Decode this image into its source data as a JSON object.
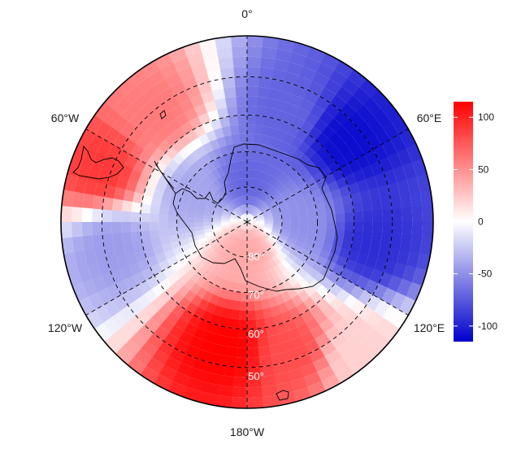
{
  "map": {
    "projection": "south-polar-stereographic",
    "longitude_labels": [
      "0°",
      "60°E",
      "120°E",
      "180°W",
      "120°W",
      "60°W"
    ],
    "latitude_labels": [
      "80°",
      "70°",
      "60°",
      "50°"
    ],
    "latitude_circles": [
      -80,
      -70,
      -60,
      -50
    ],
    "longitude_lines": [
      0,
      60,
      120,
      180,
      -120,
      -60
    ],
    "boundary_latitude": -40,
    "grid_style": "dashed",
    "coastlines": "Antarctica, southern South America",
    "field_pattern": [
      {
        "lon": 50,
        "lat": -55,
        "value": -110
      },
      {
        "lon": 100,
        "lat": -55,
        "value": -95
      },
      {
        "lon": 20,
        "lat": -58,
        "value": -70
      },
      {
        "lon": -170,
        "lat": -55,
        "value": 115
      },
      {
        "lon": 160,
        "lat": -52,
        "value": 80
      },
      {
        "lon": -70,
        "lat": -48,
        "value": 90
      },
      {
        "lon": -40,
        "lat": -52,
        "value": 60
      },
      {
        "lon": -100,
        "lat": -52,
        "value": -45
      },
      {
        "lon": 0,
        "lat": -78,
        "value": -70
      },
      {
        "lon": 90,
        "lat": -75,
        "value": -50
      },
      {
        "lon": -60,
        "lat": -73,
        "value": -40
      },
      {
        "lon": 180,
        "lat": -82,
        "value": 40
      },
      {
        "lon": 140,
        "lat": -45,
        "value": 20
      }
    ]
  },
  "legend": {
    "ticks": [
      "100",
      "50",
      "0",
      "-50",
      "-100"
    ],
    "tick_values": [
      100,
      50,
      0,
      -50,
      -100
    ],
    "range": [
      -115,
      115
    ],
    "colors": {
      "low": "#0000cc",
      "mid": "#ffffff",
      "high": "#ff0000"
    }
  }
}
